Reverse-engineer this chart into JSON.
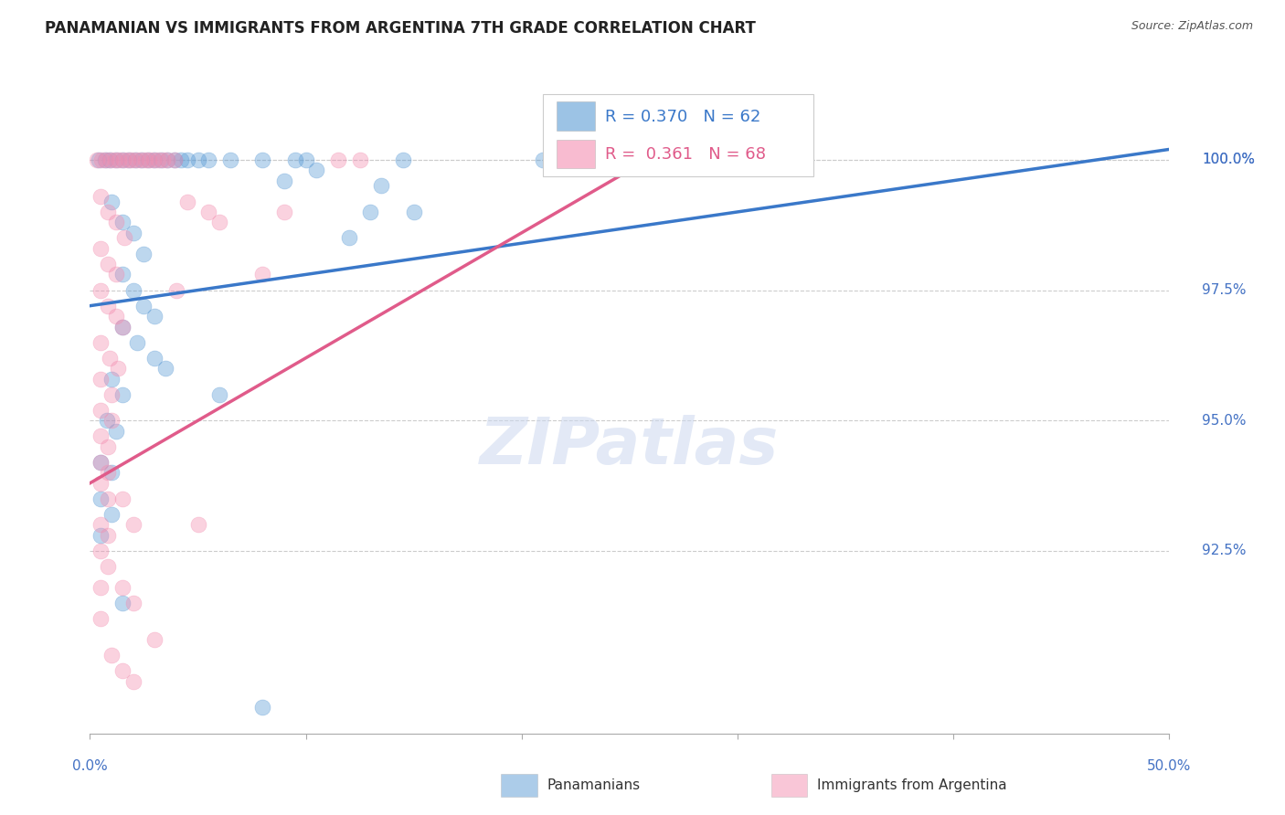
{
  "title": "PANAMANIAN VS IMMIGRANTS FROM ARGENTINA 7TH GRADE CORRELATION CHART",
  "source": "Source: ZipAtlas.com",
  "xlim": [
    0.0,
    50.0
  ],
  "ylim": [
    89.0,
    101.5
  ],
  "ytick_vals": [
    92.5,
    95.0,
    97.5,
    100.0
  ],
  "ytick_labels": [
    "92.5%",
    "95.0%",
    "97.5%",
    "100.0%"
  ],
  "blue_R": "0.370",
  "blue_N": "62",
  "pink_R": "0.361",
  "pink_N": "68",
  "blue_color": "#5b9bd5",
  "pink_color": "#f48fb1",
  "blue_line_color": "#3a78c9",
  "pink_line_color": "#e05b8a",
  "grid_color": "#cccccc",
  "background_color": "#ffffff",
  "blue_scatter": [
    [
      0.4,
      100.0
    ],
    [
      0.7,
      100.0
    ],
    [
      0.9,
      100.0
    ],
    [
      1.2,
      100.0
    ],
    [
      1.5,
      100.0
    ],
    [
      1.8,
      100.0
    ],
    [
      2.1,
      100.0
    ],
    [
      2.4,
      100.0
    ],
    [
      2.7,
      100.0
    ],
    [
      3.0,
      100.0
    ],
    [
      3.3,
      100.0
    ],
    [
      3.6,
      100.0
    ],
    [
      3.9,
      100.0
    ],
    [
      4.2,
      100.0
    ],
    [
      4.5,
      100.0
    ],
    [
      5.0,
      100.0
    ],
    [
      5.5,
      100.0
    ],
    [
      6.5,
      100.0
    ],
    [
      8.0,
      100.0
    ],
    [
      9.5,
      100.0
    ],
    [
      10.0,
      100.0
    ],
    [
      14.5,
      100.0
    ],
    [
      21.0,
      100.0
    ],
    [
      24.0,
      100.0
    ],
    [
      30.5,
      100.0
    ],
    [
      1.0,
      99.2
    ],
    [
      1.5,
      98.8
    ],
    [
      2.0,
      98.6
    ],
    [
      2.5,
      98.2
    ],
    [
      1.5,
      97.8
    ],
    [
      2.0,
      97.5
    ],
    [
      2.5,
      97.2
    ],
    [
      3.0,
      97.0
    ],
    [
      1.5,
      96.8
    ],
    [
      2.2,
      96.5
    ],
    [
      3.0,
      96.2
    ],
    [
      3.5,
      96.0
    ],
    [
      1.0,
      95.8
    ],
    [
      1.5,
      95.5
    ],
    [
      0.8,
      95.0
    ],
    [
      1.2,
      94.8
    ],
    [
      0.5,
      94.2
    ],
    [
      1.0,
      94.0
    ],
    [
      0.5,
      93.5
    ],
    [
      1.0,
      93.2
    ],
    [
      0.5,
      92.8
    ],
    [
      1.5,
      91.5
    ],
    [
      6.0,
      95.5
    ],
    [
      9.0,
      99.6
    ],
    [
      13.5,
      99.5
    ],
    [
      13.0,
      99.0
    ],
    [
      12.0,
      98.5
    ],
    [
      15.0,
      99.0
    ],
    [
      10.5,
      99.8
    ],
    [
      8.0,
      89.5
    ]
  ],
  "pink_scatter": [
    [
      0.3,
      100.0
    ],
    [
      0.55,
      100.0
    ],
    [
      0.75,
      100.0
    ],
    [
      0.95,
      100.0
    ],
    [
      1.15,
      100.0
    ],
    [
      1.35,
      100.0
    ],
    [
      1.55,
      100.0
    ],
    [
      1.75,
      100.0
    ],
    [
      1.95,
      100.0
    ],
    [
      2.15,
      100.0
    ],
    [
      2.35,
      100.0
    ],
    [
      2.55,
      100.0
    ],
    [
      2.75,
      100.0
    ],
    [
      2.95,
      100.0
    ],
    [
      3.15,
      100.0
    ],
    [
      3.35,
      100.0
    ],
    [
      3.6,
      100.0
    ],
    [
      3.9,
      100.0
    ],
    [
      11.5,
      100.0
    ],
    [
      12.5,
      100.0
    ],
    [
      0.5,
      99.3
    ],
    [
      0.85,
      99.0
    ],
    [
      1.2,
      98.8
    ],
    [
      1.6,
      98.5
    ],
    [
      0.5,
      98.3
    ],
    [
      0.85,
      98.0
    ],
    [
      1.2,
      97.8
    ],
    [
      0.5,
      97.5
    ],
    [
      0.85,
      97.2
    ],
    [
      1.2,
      97.0
    ],
    [
      1.5,
      96.8
    ],
    [
      0.5,
      96.5
    ],
    [
      0.9,
      96.2
    ],
    [
      1.3,
      96.0
    ],
    [
      0.5,
      95.8
    ],
    [
      1.0,
      95.5
    ],
    [
      0.5,
      95.2
    ],
    [
      1.0,
      95.0
    ],
    [
      0.5,
      94.7
    ],
    [
      0.85,
      94.5
    ],
    [
      0.5,
      94.2
    ],
    [
      0.85,
      94.0
    ],
    [
      0.5,
      93.8
    ],
    [
      0.85,
      93.5
    ],
    [
      0.5,
      93.0
    ],
    [
      0.85,
      92.8
    ],
    [
      0.5,
      92.5
    ],
    [
      0.85,
      92.2
    ],
    [
      0.5,
      91.8
    ],
    [
      0.5,
      91.2
    ],
    [
      1.5,
      93.5
    ],
    [
      2.0,
      93.0
    ],
    [
      1.5,
      91.8
    ],
    [
      2.0,
      91.5
    ],
    [
      4.0,
      97.5
    ],
    [
      5.0,
      93.0
    ],
    [
      1.0,
      90.5
    ],
    [
      1.5,
      90.2
    ],
    [
      2.0,
      90.0
    ],
    [
      3.0,
      90.8
    ],
    [
      4.5,
      99.2
    ],
    [
      5.5,
      99.0
    ],
    [
      6.0,
      98.8
    ],
    [
      8.0,
      97.8
    ],
    [
      9.0,
      99.0
    ]
  ],
  "blue_trend_x0": 0.0,
  "blue_trend_x1": 50.0,
  "blue_trend_y0": 97.2,
  "blue_trend_y1": 100.2,
  "pink_trend_x0": 0.0,
  "pink_trend_x1": 30.0,
  "pink_trend_y0": 93.8,
  "pink_trend_y1": 101.0
}
